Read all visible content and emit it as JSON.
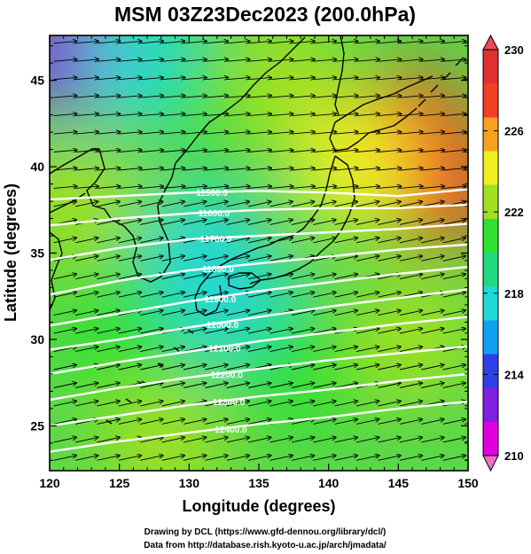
{
  "chart_data": {
    "type": "heatmap",
    "title": "MSM 03Z23Dec2023 (200.0hPa)",
    "xlabel": "Longitude (degrees)",
    "ylabel": "Latitude  (degrees)",
    "xlim": [
      120,
      150
    ],
    "ylim": [
      22.4,
      47.6
    ],
    "x_ticks": [
      120,
      125,
      130,
      135,
      140,
      145,
      150
    ],
    "y_ticks": [
      25,
      30,
      35,
      40,
      45
    ],
    "colorbar": {
      "min": 210,
      "max": 230,
      "ticks": [
        210,
        214,
        218,
        222,
        226,
        230
      ],
      "colors": [
        "#e000e0",
        "#8020e0",
        "#3040e8",
        "#10a0f0",
        "#20d8d8",
        "#20d880",
        "#30e030",
        "#a0e020",
        "#f0f020",
        "#f8a020",
        "#f04020",
        "#e03030"
      ]
    },
    "temperature_field": [
      {
        "lon": 121,
        "lat": 46.5,
        "value": 213
      },
      {
        "lon": 127,
        "lat": 46,
        "value": 218
      },
      {
        "lon": 133,
        "lat": 44,
        "value": 220
      },
      {
        "lon": 137,
        "lat": 45,
        "value": 223
      },
      {
        "lon": 146,
        "lat": 42,
        "value": 228
      },
      {
        "lon": 148,
        "lat": 39,
        "value": 227
      },
      {
        "lon": 142,
        "lat": 40,
        "value": 224
      },
      {
        "lon": 131,
        "lat": 35,
        "value": 217
      },
      {
        "lon": 133,
        "lat": 32,
        "value": 217.5
      },
      {
        "lon": 122,
        "lat": 38,
        "value": 222
      },
      {
        "lon": 125,
        "lat": 30,
        "value": 221
      },
      {
        "lon": 138,
        "lat": 28,
        "value": 221
      },
      {
        "lon": 146,
        "lat": 30,
        "value": 222
      },
      {
        "lon": 128,
        "lat": 24,
        "value": 222
      }
    ],
    "height_contours": [
      {
        "label": "11500.0",
        "points": [
          [
            120,
            38.1
          ],
          [
            125,
            38.3
          ],
          [
            130,
            38.5
          ],
          [
            135,
            38.6
          ],
          [
            140,
            38.5
          ],
          [
            145,
            38.3
          ],
          [
            150,
            38.7
          ]
        ]
      },
      {
        "label": "11600.0",
        "points": [
          [
            120,
            36.6
          ],
          [
            125,
            37.0
          ],
          [
            130,
            37.3
          ],
          [
            135,
            37.5
          ],
          [
            140,
            37.6
          ],
          [
            145,
            37.6
          ],
          [
            150,
            37.8
          ]
        ]
      },
      {
        "label": "11700.0",
        "points": [
          [
            120,
            34.6
          ],
          [
            125,
            35.3
          ],
          [
            130,
            35.8
          ],
          [
            135,
            36.0
          ],
          [
            140,
            36.2
          ],
          [
            145,
            36.4
          ],
          [
            150,
            36.7
          ]
        ]
      },
      {
        "label": "11800.0",
        "points": [
          [
            120,
            32.6
          ],
          [
            125,
            33.4
          ],
          [
            130,
            34.0
          ],
          [
            135,
            34.4
          ],
          [
            140,
            34.8
          ],
          [
            145,
            35.2
          ],
          [
            150,
            35.5
          ]
        ]
      },
      {
        "label": "11900.0",
        "points": [
          [
            120,
            30.8
          ],
          [
            125,
            31.5
          ],
          [
            130,
            32.2
          ],
          [
            135,
            32.8
          ],
          [
            140,
            33.3
          ],
          [
            145,
            33.8
          ],
          [
            150,
            34.2
          ]
        ]
      },
      {
        "label": "12000.0",
        "points": [
          [
            120,
            29.4
          ],
          [
            125,
            30.0
          ],
          [
            130,
            30.7
          ],
          [
            135,
            31.3
          ],
          [
            140,
            31.9
          ],
          [
            145,
            32.4
          ],
          [
            150,
            32.9
          ]
        ]
      },
      {
        "label": "12100.0",
        "points": [
          [
            120,
            28.0
          ],
          [
            125,
            28.7
          ],
          [
            130,
            29.3
          ],
          [
            135,
            29.9
          ],
          [
            140,
            30.4
          ],
          [
            145,
            30.9
          ],
          [
            150,
            31.3
          ]
        ]
      },
      {
        "label": "12200.0",
        "points": [
          [
            120,
            26.5
          ],
          [
            125,
            27.2
          ],
          [
            130,
            27.8
          ],
          [
            135,
            28.3
          ],
          [
            140,
            28.8
          ],
          [
            145,
            29.2
          ],
          [
            150,
            29.6
          ]
        ]
      },
      {
        "label": "12300.0",
        "points": [
          [
            120,
            25.0
          ],
          [
            125,
            25.6
          ],
          [
            130,
            26.2
          ],
          [
            135,
            26.7
          ],
          [
            140,
            27.1
          ],
          [
            145,
            27.6
          ],
          [
            150,
            28.0
          ]
        ]
      },
      {
        "label": "12400.0",
        "points": [
          [
            120,
            23.5
          ],
          [
            125,
            24.1
          ],
          [
            130,
            24.6
          ],
          [
            135,
            25.1
          ],
          [
            140,
            25.5
          ],
          [
            145,
            26.0
          ],
          [
            150,
            26.4
          ]
        ]
      }
    ],
    "wind_field": {
      "prevailing_direction": "westerly"
    },
    "annotations": {
      "credit_line_1": "Drawing by DCL (https://www.gfd-dennou.org/library/dcl/)",
      "credit_line_2": "Data from http://database.rish.kyoto-u.ac.jp/arch/jmadata/"
    }
  }
}
